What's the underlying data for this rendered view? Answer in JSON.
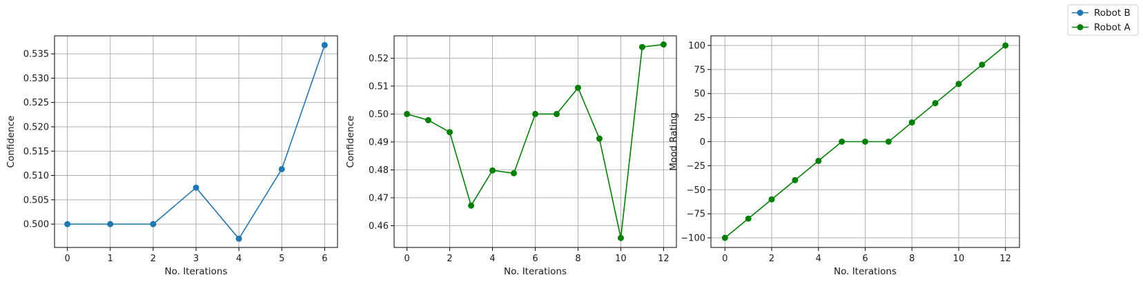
{
  "legend": {
    "position": "top-right",
    "items": [
      {
        "label": "Robot B",
        "color": "#1f77b4"
      },
      {
        "label": "Robot A",
        "color": "#008000"
      }
    ]
  },
  "chart_data": [
    {
      "type": "line",
      "xlabel": "No. Iterations",
      "ylabel": "Confidence",
      "grid": true,
      "color": "#1f77b4",
      "marker": "circle",
      "x": [
        0,
        1,
        2,
        3,
        4,
        5,
        6
      ],
      "y": [
        0.5,
        0.5,
        0.5,
        0.5075,
        0.497,
        0.5113,
        0.5368
      ],
      "xticks": [
        0,
        1,
        2,
        3,
        4,
        5,
        6
      ],
      "xtick_labels": [
        "0",
        "1",
        "2",
        "3",
        "4",
        "5",
        "6"
      ],
      "yticks": [
        0.5,
        0.505,
        0.51,
        0.515,
        0.52,
        0.525,
        0.53,
        0.535
      ],
      "ytick_labels": [
        "0.500",
        "0.505",
        "0.510",
        "0.515",
        "0.520",
        "0.525",
        "0.530",
        "0.535"
      ],
      "xlim": [
        -0.3,
        6.3
      ],
      "ylim": [
        0.4952,
        0.5387
      ]
    },
    {
      "type": "line",
      "xlabel": "No. Iterations",
      "ylabel": "Confidence",
      "grid": true,
      "color": "#008000",
      "marker": "circle",
      "x": [
        0,
        1,
        2,
        3,
        4,
        5,
        6,
        7,
        8,
        9,
        10,
        11,
        12
      ],
      "y": [
        0.5,
        0.4978,
        0.4935,
        0.4672,
        0.4798,
        0.4788,
        0.5,
        0.5,
        0.5094,
        0.4912,
        0.4556,
        0.524,
        0.5249
      ],
      "xticks": [
        0,
        2,
        4,
        6,
        8,
        10,
        12
      ],
      "xtick_labels": [
        "0",
        "2",
        "4",
        "6",
        "8",
        "10",
        "12"
      ],
      "yticks": [
        0.46,
        0.47,
        0.48,
        0.49,
        0.5,
        0.51,
        0.52
      ],
      "ytick_labels": [
        "0.46",
        "0.47",
        "0.48",
        "0.49",
        "0.50",
        "0.51",
        "0.52"
      ],
      "xlim": [
        -0.6,
        12.6
      ],
      "ylim": [
        0.4522,
        0.528
      ]
    },
    {
      "type": "line",
      "xlabel": "No. Iterations",
      "ylabel": "Mood Rating",
      "grid": true,
      "color": "#008000",
      "marker": "circle",
      "x": [
        0,
        1,
        2,
        3,
        4,
        5,
        6,
        7,
        8,
        9,
        10,
        11,
        12
      ],
      "y": [
        -100,
        -80,
        -60,
        -40,
        -20,
        0,
        0,
        0,
        20,
        40,
        60,
        80,
        100
      ],
      "xticks": [
        0,
        2,
        4,
        6,
        8,
        10,
        12
      ],
      "xtick_labels": [
        "0",
        "2",
        "4",
        "6",
        "8",
        "10",
        "12"
      ],
      "yticks": [
        -100,
        -75,
        -50,
        -25,
        0,
        25,
        50,
        75,
        100
      ],
      "ytick_labels": [
        "−100",
        "−75",
        "−50",
        "−25",
        "0",
        "25",
        "50",
        "75",
        "100"
      ],
      "xlim": [
        -0.6,
        12.6
      ],
      "ylim": [
        -110,
        110
      ]
    }
  ]
}
